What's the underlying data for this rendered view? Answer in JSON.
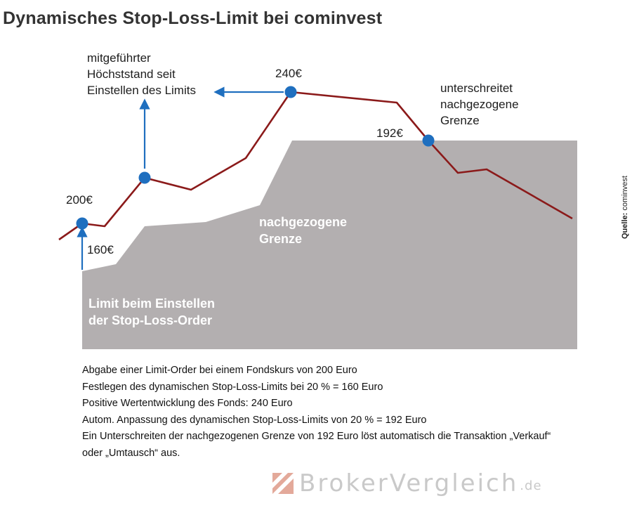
{
  "title": "Dynamisches Stop-Loss-Limit bei cominvest",
  "labels": {
    "start_price": "200€",
    "start_limit": "160€",
    "peak_price": "240€",
    "trail_limit": "192€",
    "high_note": [
      "mitgeführter",
      "Höchststand seit",
      "Einstellen des Limits"
    ],
    "break_note": [
      "unterschreitet",
      "nachgezogene",
      "Grenze"
    ],
    "trailing_area": [
      "nachgezogene",
      "Grenze"
    ],
    "initial_area": [
      "Limit beim Einstellen",
      "der Stop-Loss-Order"
    ]
  },
  "source": {
    "prefix": "Quelle:",
    "name": "cominvest"
  },
  "description": [
    "Abgabe einer Limit-Order bei einem Fondskurs von 200 Euro",
    "Festlegen des dynamischen Stop-Loss-Limits bei 20 % = 160 Euro",
    "Positive Wertentwicklung des Fonds: 240 Euro",
    "Autom. Anpassung des dynamischen Stop-Loss-Limits von 20 % = 192 Euro",
    "Ein Unterschreiten der nachgezogenen Grenze von 192 Euro löst automatisch die Transaktion „Verkauf“",
    "oder „Umtausch“ aus."
  ],
  "brand": {
    "name": "BrokerVergleich",
    "tld": ".de"
  },
  "colors": {
    "price_line": "#8b1a1a",
    "marker": "#1f6fbf",
    "area": "#b3afb0",
    "title": "#333333"
  }
}
